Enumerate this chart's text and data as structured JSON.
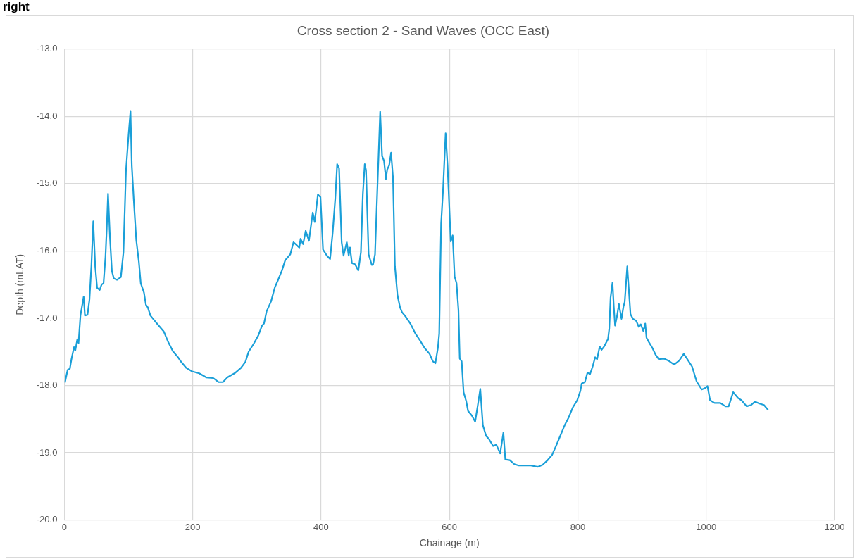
{
  "chart_data": {
    "type": "line",
    "title": "Cross section 2 - Sand Waves (OCC East)",
    "xlabel": "Chainage (m)",
    "ylabel": "Depth (mLAT)",
    "annotations": [
      "right"
    ],
    "x": [
      1,
      5,
      8.5,
      11,
      15,
      17,
      20,
      22,
      25,
      30,
      32,
      36,
      39,
      42,
      45,
      48,
      51,
      55,
      58,
      61,
      64,
      66,
      68,
      71,
      74,
      77,
      82,
      88,
      92,
      96,
      100,
      103,
      105,
      108,
      112,
      116,
      119,
      124,
      127,
      130,
      134,
      140,
      147,
      155,
      162,
      169,
      177,
      182,
      190,
      199,
      210,
      221,
      232,
      240,
      247,
      254,
      265,
      275,
      282,
      287,
      295,
      302,
      308,
      311,
      315,
      322,
      328,
      333,
      339,
      344,
      352,
      357,
      366,
      368,
      372,
      376,
      381,
      387,
      390,
      395,
      399,
      403,
      409,
      414,
      418,
      422,
      425,
      428,
      432,
      435,
      440,
      443,
      445,
      448,
      453,
      458,
      462,
      465,
      468,
      470,
      474,
      479,
      481,
      484,
      488,
      492,
      495,
      498,
      501,
      503,
      506,
      509,
      512,
      515,
      519,
      523,
      526,
      532,
      539,
      547,
      554,
      561,
      569,
      574,
      578,
      582,
      584,
      587,
      590,
      594,
      597,
      602,
      605,
      608,
      611,
      614,
      616,
      619,
      622,
      626,
      629,
      635,
      640,
      644,
      648,
      652,
      657,
      661,
      668,
      673,
      679,
      684,
      687,
      694,
      701,
      708,
      720,
      727,
      738,
      745,
      753,
      760,
      766,
      773,
      780,
      786,
      792,
      799,
      804,
      806,
      811,
      815,
      819,
      823,
      827,
      830,
      834,
      837,
      841,
      847,
      849,
      851,
      854,
      856,
      858,
      861,
      864,
      868,
      871,
      873,
      877,
      882,
      886,
      891,
      895,
      898,
      902,
      905,
      907,
      911,
      916,
      921,
      926,
      934,
      941,
      950,
      958,
      965,
      970,
      978,
      985,
      993,
      998,
      1002,
      1006,
      1013,
      1022,
      1030,
      1035,
      1042,
      1050,
      1055,
      1063,
      1070,
      1076,
      1083,
      1090,
      1096
    ],
    "series": [
      {
        "color": "#1a9fd8",
        "values": [
          -17.95,
          -17.77,
          -17.75,
          -17.61,
          -17.43,
          -17.48,
          -17.32,
          -17.37,
          -16.96,
          -16.68,
          -16.96,
          -16.95,
          -16.73,
          -16.23,
          -15.56,
          -16.23,
          -16.55,
          -16.58,
          -16.5,
          -16.48,
          -16.09,
          -15.66,
          -15.15,
          -15.8,
          -16.3,
          -16.41,
          -16.43,
          -16.39,
          -16.02,
          -14.8,
          -14.27,
          -13.92,
          -14.73,
          -15.23,
          -15.84,
          -16.16,
          -16.48,
          -16.62,
          -16.8,
          -16.84,
          -16.96,
          -17.03,
          -17.11,
          -17.2,
          -17.36,
          -17.49,
          -17.58,
          -17.65,
          -17.74,
          -17.79,
          -17.82,
          -17.88,
          -17.89,
          -17.95,
          -17.95,
          -17.88,
          -17.82,
          -17.74,
          -17.65,
          -17.5,
          -17.38,
          -17.26,
          -17.11,
          -17.08,
          -16.9,
          -16.75,
          -16.54,
          -16.43,
          -16.29,
          -16.14,
          -16.05,
          -15.87,
          -15.95,
          -15.82,
          -15.9,
          -15.7,
          -15.85,
          -15.43,
          -15.57,
          -15.16,
          -15.2,
          -15.98,
          -16.07,
          -16.12,
          -15.73,
          -15.23,
          -14.71,
          -14.77,
          -15.87,
          -16.07,
          -15.87,
          -16.07,
          -15.95,
          -16.18,
          -16.2,
          -16.29,
          -16.02,
          -15.16,
          -14.71,
          -14.8,
          -16.05,
          -16.21,
          -16.2,
          -16.05,
          -14.98,
          -13.93,
          -14.59,
          -14.66,
          -14.93,
          -14.79,
          -14.73,
          -14.54,
          -14.91,
          -16.23,
          -16.66,
          -16.84,
          -16.91,
          -16.98,
          -17.08,
          -17.23,
          -17.33,
          -17.44,
          -17.53,
          -17.64,
          -17.67,
          -17.44,
          -17.23,
          -15.59,
          -15.09,
          -14.25,
          -14.73,
          -15.86,
          -15.77,
          -16.38,
          -16.48,
          -16.88,
          -17.6,
          -17.64,
          -18.1,
          -18.23,
          -18.38,
          -18.45,
          -18.54,
          -18.3,
          -18.05,
          -18.59,
          -18.75,
          -18.79,
          -18.9,
          -18.88,
          -19.01,
          -18.7,
          -19.1,
          -19.11,
          -19.17,
          -19.19,
          -19.19,
          -19.19,
          -19.21,
          -19.18,
          -19.11,
          -19.03,
          -18.9,
          -18.74,
          -18.58,
          -18.47,
          -18.33,
          -18.22,
          -18.08,
          -17.97,
          -17.95,
          -17.81,
          -17.83,
          -17.72,
          -17.58,
          -17.61,
          -17.42,
          -17.47,
          -17.42,
          -17.31,
          -17.15,
          -16.69,
          -16.47,
          -16.83,
          -17.11,
          -16.97,
          -16.79,
          -17.01,
          -16.83,
          -16.76,
          -16.23,
          -16.94,
          -17.01,
          -17.04,
          -17.13,
          -17.09,
          -17.19,
          -17.08,
          -17.29,
          -17.36,
          -17.44,
          -17.54,
          -17.61,
          -17.6,
          -17.63,
          -17.69,
          -17.63,
          -17.53,
          -17.6,
          -17.72,
          -17.94,
          -18.06,
          -18.04,
          -18.01,
          -18.22,
          -18.26,
          -18.26,
          -18.31,
          -18.31,
          -18.1,
          -18.19,
          -18.22,
          -18.31,
          -18.29,
          -18.24,
          -18.27,
          -18.29,
          -18.36
        ]
      }
    ],
    "xlim": [
      0,
      1200
    ],
    "xticks": [
      0,
      200,
      400,
      600,
      800,
      1000,
      1200
    ],
    "ylim": [
      -20,
      -13
    ],
    "yticks": [
      {
        "value": -20,
        "label": "-20.0"
      },
      {
        "value": -19,
        "label": "-19.0"
      },
      {
        "value": -18,
        "label": "-18.0"
      },
      {
        "value": -17,
        "label": "-17.0"
      },
      {
        "value": -16,
        "label": "-16.0"
      },
      {
        "value": -15,
        "label": "-15.0"
      },
      {
        "value": -14,
        "label": "-14.0"
      },
      {
        "value": -13,
        "label": "-13.0"
      }
    ],
    "grid": true,
    "marker": "none",
    "line_style": "solid",
    "legend": false
  }
}
